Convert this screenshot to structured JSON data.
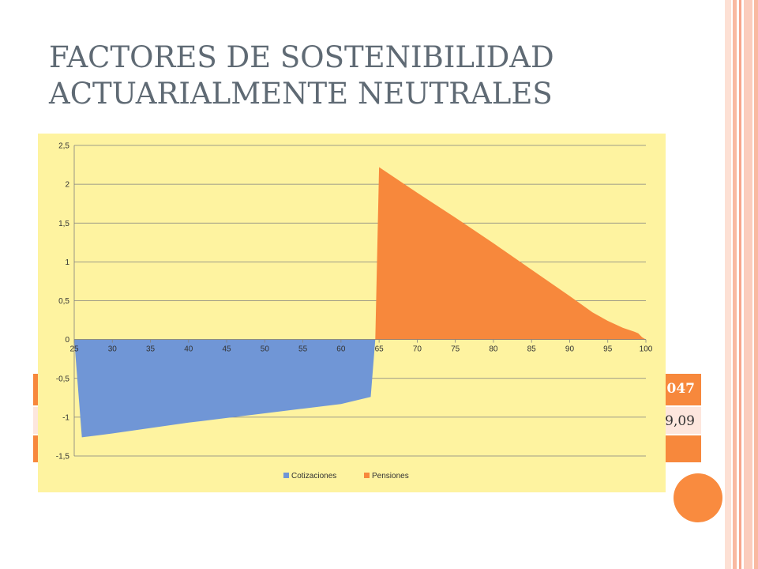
{
  "slide": {
    "title_line1": "FACTORES DE SOSTENIBILIDAD",
    "title_line2": "ACTUARIALMENTE NEUTRALES"
  },
  "background_table": {
    "row1_value": "047",
    "row2_value": "9,09"
  },
  "colors": {
    "title": "#5f6a74",
    "chart_background": "#fef3a0",
    "cotizaciones": "#7096d6",
    "pensiones": "#f7883c",
    "accent_circle": "#f98b3f"
  },
  "chart_data": {
    "type": "area",
    "title": "",
    "xlabel": "",
    "ylabel": "",
    "xlim": [
      25,
      100
    ],
    "ylim": [
      -1.5,
      2.5
    ],
    "x_ticks": [
      "25",
      "30",
      "35",
      "40",
      "45",
      "50",
      "55",
      "60",
      "65",
      "70",
      "75",
      "80",
      "85",
      "90",
      "95",
      "100"
    ],
    "y_ticks": [
      "2,5",
      "2",
      "1,5",
      "1",
      "0,5",
      "0",
      "-0,5",
      "-1",
      "-1,5"
    ],
    "grid": "horizontal",
    "legend_position": "bottom",
    "series": [
      {
        "name": "Cotizaciones",
        "points": [
          [
            25,
            0
          ],
          [
            26,
            -1.26
          ],
          [
            30,
            -1.21
          ],
          [
            35,
            -1.14
          ],
          [
            40,
            -1.07
          ],
          [
            45,
            -1.01
          ],
          [
            50,
            -0.95
          ],
          [
            55,
            -0.89
          ],
          [
            60,
            -0.83
          ],
          [
            63.9,
            -0.74
          ],
          [
            64.5,
            0
          ],
          [
            64,
            0
          ]
        ]
      },
      {
        "name": "Pensiones",
        "points": [
          [
            64.5,
            0
          ],
          [
            65,
            2.22
          ],
          [
            70,
            1.89
          ],
          [
            75,
            1.57
          ],
          [
            80,
            1.24
          ],
          [
            85,
            0.9
          ],
          [
            90,
            0.56
          ],
          [
            93,
            0.35
          ],
          [
            95,
            0.24
          ],
          [
            97,
            0.15
          ],
          [
            98.5,
            0.1
          ],
          [
            99,
            0.08
          ],
          [
            99.5,
            0.03
          ],
          [
            100,
            0
          ]
        ]
      }
    ]
  }
}
